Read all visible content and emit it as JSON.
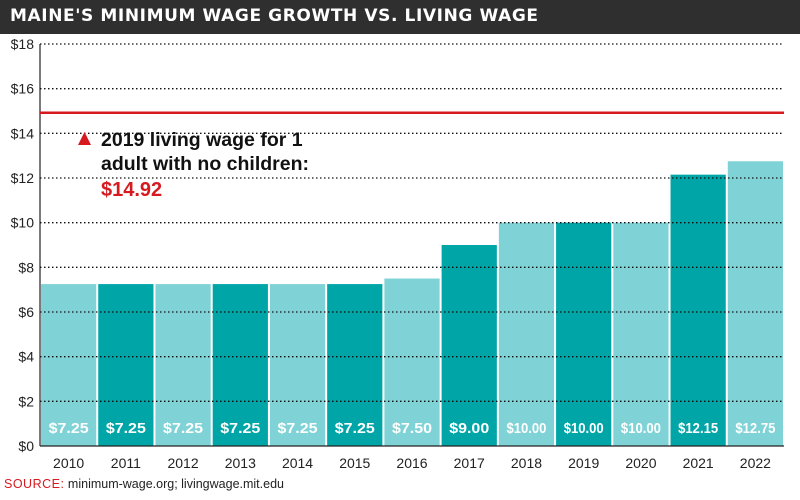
{
  "header": {
    "title": "MAINE'S MINIMUM WAGE GROWTH VS. LIVING WAGE"
  },
  "chart_data": {
    "type": "bar",
    "title": "MAINE'S MINIMUM WAGE GROWTH VS. LIVING WAGE",
    "categories": [
      "2010",
      "2011",
      "2012",
      "2013",
      "2014",
      "2015",
      "2016",
      "2017",
      "2018",
      "2019",
      "2020",
      "2021",
      "2022"
    ],
    "values": [
      7.25,
      7.25,
      7.25,
      7.25,
      7.25,
      7.25,
      7.5,
      9.0,
      10.0,
      10.0,
      10.0,
      12.15,
      12.75
    ],
    "value_labels": [
      "$7.25",
      "$7.25",
      "$7.25",
      "$7.25",
      "$7.25",
      "$7.25",
      "$7.50",
      "$9.00",
      "$10.00",
      "$10.00",
      "$10.00",
      "$12.15",
      "$12.75"
    ],
    "y_ticks": [
      0,
      2,
      4,
      6,
      8,
      10,
      12,
      14,
      16,
      18
    ],
    "y_tick_labels": [
      "$0",
      "$2",
      "$4",
      "$6",
      "$8",
      "$10",
      "$12",
      "$14",
      "$16",
      "$18"
    ],
    "ylim": [
      0,
      18
    ],
    "grid": true,
    "bar_colors": [
      "#7fd3d7",
      "#00a5a8"
    ],
    "reference_line": {
      "value": 14.92,
      "color": "#d71920",
      "label_lines": [
        "2019 living wage for 1",
        "adult with no children:"
      ],
      "value_label": "$14.92"
    }
  },
  "source": {
    "label": "SOURCE:",
    "text": " minimum-wage.org; livingwage.mit.edu"
  }
}
